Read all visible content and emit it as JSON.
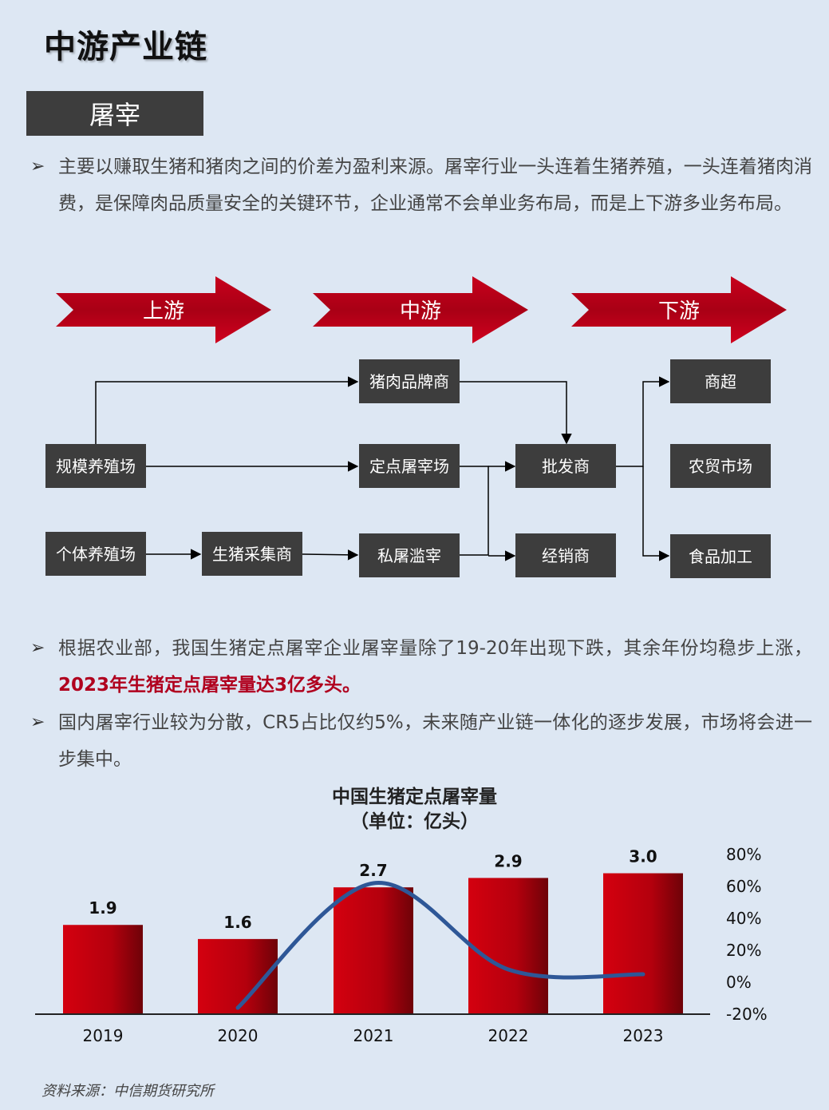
{
  "page_title": "中游产业链",
  "section_tag": "屠宰",
  "bullets": {
    "intro": "主要以赚取生猪和猪肉之间的价差为盈利来源。屠宰行业一头连着生猪养殖，一头连着猪肉消费，是保障肉品质量安全的关键环节，企业通常不会单业务布局，而是上下游多业务布局。",
    "stats_before": "根据农业部，我国生猪定点屠宰企业屠宰量除了19-20年出现下跌，其余年份均稳步上涨，",
    "stats_highlight": "2023年生猪定点屠宰量达3亿多头。",
    "concentration": "国内屠宰行业较为分散，CR5占比仅约5%，未来随产业链一体化的逐步发展，市场将会进一步集中。"
  },
  "bullet_marker": "➢",
  "stages": [
    "上游",
    "中游",
    "下游"
  ],
  "nodes": {
    "scale_farm": "规模养殖场",
    "individual_farm": "个体养殖场",
    "hog_collector": "生猪采集商",
    "pork_brand": "猪肉品牌商",
    "designated_slaughter": "定点屠宰场",
    "private_slaughter": "私屠滥宰",
    "wholesaler": "批发商",
    "distributor": "经销商",
    "supermarket": "商超",
    "farmers_market": "农贸市场",
    "food_processing": "食品加工"
  },
  "colors": {
    "arrow": "#c0001a",
    "node": "#3d3d3d",
    "bar": "#c0000f",
    "line": "#2e5797",
    "background": "#dde7f3"
  },
  "chart_title_line1": "中国生猪定点屠宰量",
  "chart_title_line2": "（单位：亿头）",
  "chart_data": {
    "type": "bar",
    "categories": [
      "2019",
      "2020",
      "2021",
      "2022",
      "2023"
    ],
    "values": [
      1.9,
      1.6,
      2.7,
      2.9,
      3.0
    ],
    "value_labels": [
      "1.9",
      "1.6",
      "2.7",
      "2.9",
      "3.0"
    ],
    "ylim": [
      0,
      3.4
    ],
    "secondary_series": {
      "type": "line",
      "values": [
        -16,
        62,
        8,
        5
      ],
      "x": [
        "2020",
        "2021",
        "2022",
        "2023"
      ],
      "ylim": [
        -20,
        80
      ],
      "tick_labels": [
        "80%",
        "60%",
        "40%",
        "20%",
        "0%",
        "-20%"
      ]
    }
  },
  "source": "资料来源：中信期货研究所"
}
